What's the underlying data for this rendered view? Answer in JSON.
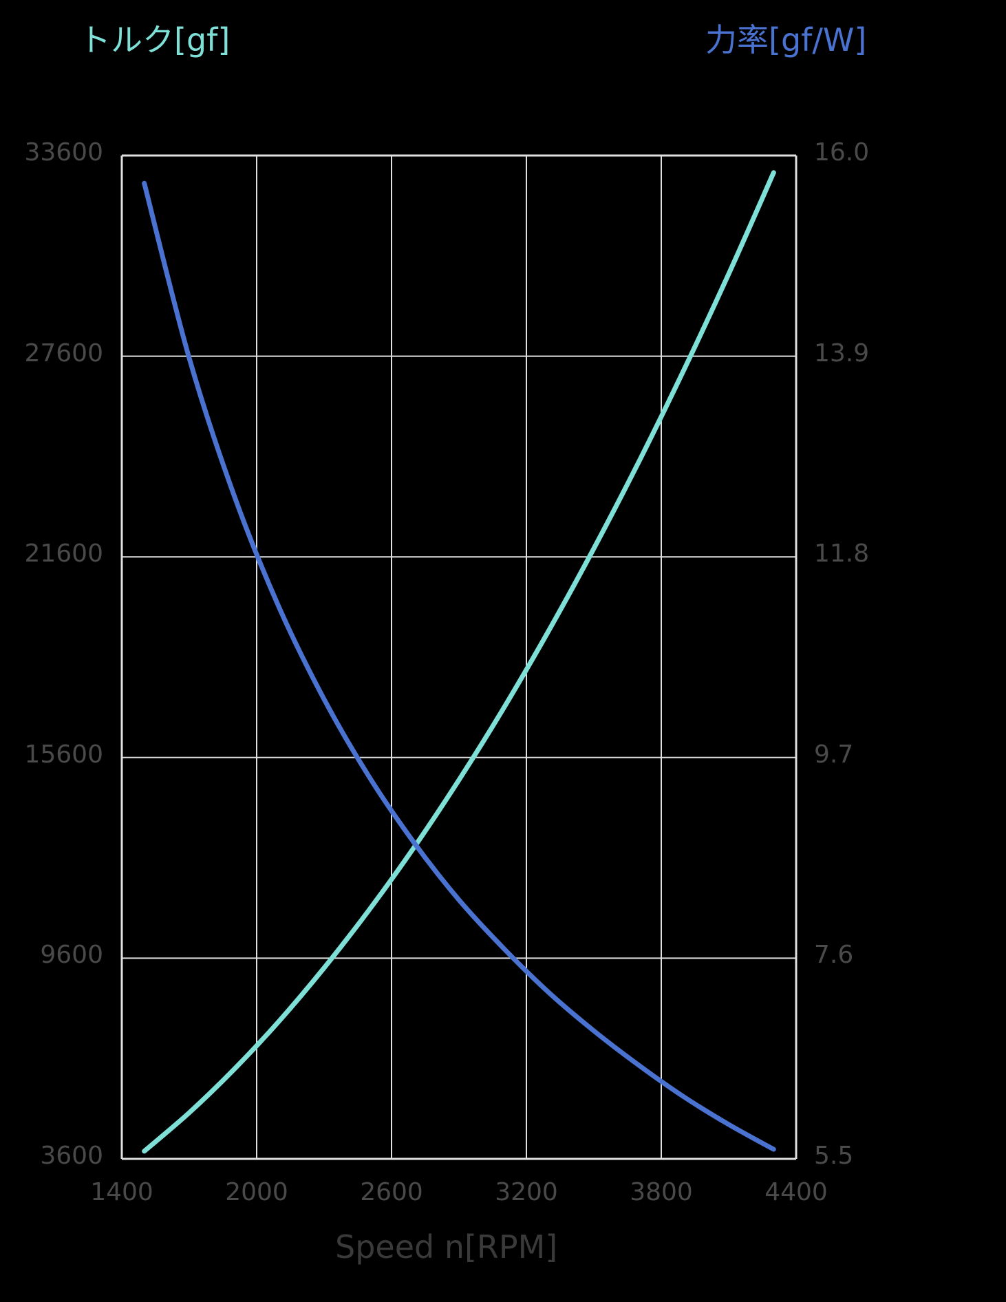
{
  "chart_data": {
    "type": "line",
    "title": "",
    "xlabel": "Speed n[RPM]",
    "ylabel_left": "トルク[gf]",
    "ylabel_right": "力率[gf/W]",
    "x_ticks": [
      "1400",
      "2000",
      "2600",
      "3200",
      "3800",
      "4400"
    ],
    "y_left_ticks": [
      "33600",
      "27600",
      "21600",
      "15600",
      "9600",
      "3600"
    ],
    "y_right_ticks": [
      "16.0",
      "13.9",
      "11.8",
      "9.7",
      "7.6",
      "5.5"
    ],
    "xlim": [
      1400,
      4400
    ],
    "ylim_left": [
      3600,
      33600
    ],
    "ylim_right": [
      5.5,
      16.0
    ],
    "grid": true,
    "legend": "none",
    "x": [
      1500,
      1700,
      1900,
      2100,
      2300,
      2500,
      2700,
      2900,
      3100,
      3300,
      3500,
      3700,
      3900,
      4100,
      4300
    ],
    "series": [
      {
        "name": "トルク[gf]",
        "axis": "left",
        "color": "#7fe0d8",
        "values": [
          3830,
          4980,
          6280,
          7720,
          9310,
          11040,
          12910,
          14930,
          17090,
          19400,
          21850,
          24440,
          27180,
          30060,
          33090
        ]
      },
      {
        "name": "力率[gf/W]",
        "axis": "right",
        "color": "#4a72d0",
        "values": [
          15.71,
          13.88,
          12.44,
          11.27,
          10.31,
          9.5,
          8.81,
          8.21,
          7.7,
          7.24,
          6.84,
          6.48,
          6.15,
          5.86,
          5.6
        ]
      }
    ]
  },
  "colors": {
    "background": "#000000",
    "grid": "#e0e0e0",
    "tick_text": "#4a4a4a",
    "torque": "#7fe0d8",
    "efficiency": "#4a72d0"
  }
}
